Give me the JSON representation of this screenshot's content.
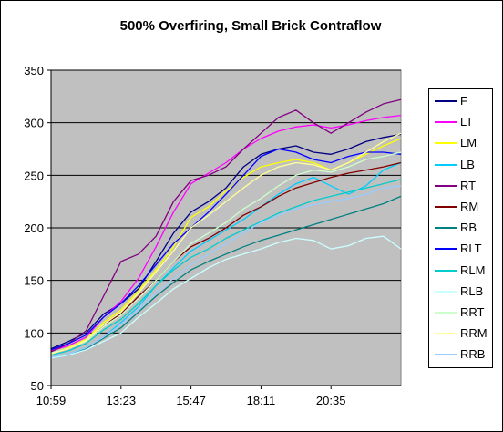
{
  "chart_data": {
    "type": "line",
    "title": "500% Overfiring, Small Brick Contraflow",
    "xlabel": "",
    "ylabel": "",
    "ylim": [
      50,
      350
    ],
    "y_ticks": [
      50,
      100,
      150,
      200,
      250,
      300,
      350
    ],
    "x_tick_labels": [
      "10:59",
      "13:23",
      "15:47",
      "18:11",
      "20:35"
    ],
    "grid": "horizontal",
    "legend_position": "right",
    "plot_background": "#c0c0c0",
    "x": [
      0,
      5,
      10,
      15,
      20,
      25,
      30,
      35,
      40,
      45,
      50,
      55,
      60,
      65,
      70,
      75,
      80,
      85,
      90,
      95,
      100
    ],
    "series": [
      {
        "name": "F",
        "color": "#000080",
        "values": [
          85,
          92,
          100,
          118,
          128,
          142,
          168,
          195,
          215,
          225,
          238,
          258,
          270,
          275,
          278,
          272,
          270,
          275,
          282,
          286,
          289
        ]
      },
      {
        "name": "LT",
        "color": "#ff00ff",
        "values": [
          83,
          88,
          96,
          115,
          130,
          152,
          182,
          215,
          242,
          252,
          262,
          275,
          285,
          292,
          296,
          298,
          295,
          298,
          302,
          305,
          307
        ]
      },
      {
        "name": "LM",
        "color": "#ffff00",
        "values": [
          80,
          86,
          94,
          110,
          122,
          140,
          160,
          182,
          210,
          220,
          235,
          248,
          258,
          262,
          265,
          262,
          255,
          262,
          270,
          278,
          285
        ]
      },
      {
        "name": "LB",
        "color": "#00ccff",
        "values": [
          77,
          80,
          86,
          96,
          110,
          125,
          145,
          162,
          178,
          188,
          198,
          208,
          220,
          232,
          242,
          248,
          240,
          232,
          240,
          255,
          262
        ]
      },
      {
        "name": "RT",
        "color": "#800080",
        "values": [
          82,
          90,
          102,
          135,
          168,
          175,
          192,
          225,
          245,
          250,
          258,
          275,
          290,
          305,
          312,
          300,
          290,
          300,
          310,
          318,
          322
        ]
      },
      {
        "name": "RM",
        "color": "#800000",
        "values": [
          80,
          85,
          92,
          108,
          118,
          135,
          150,
          168,
          182,
          190,
          200,
          212,
          220,
          230,
          238,
          243,
          248,
          252,
          255,
          258,
          262
        ]
      },
      {
        "name": "RB",
        "color": "#008080",
        "values": [
          76,
          79,
          85,
          95,
          105,
          120,
          135,
          148,
          160,
          168,
          175,
          182,
          188,
          193,
          198,
          203,
          208,
          213,
          218,
          223,
          230
        ]
      },
      {
        "name": "RLT",
        "color": "#0000ff",
        "values": [
          84,
          90,
          98,
          115,
          128,
          145,
          165,
          185,
          200,
          215,
          232,
          250,
          268,
          275,
          272,
          265,
          262,
          268,
          272,
          272,
          270
        ]
      },
      {
        "name": "RLM",
        "color": "#00cccc",
        "values": [
          79,
          83,
          90,
          103,
          113,
          128,
          145,
          160,
          172,
          180,
          190,
          198,
          206,
          214,
          220,
          226,
          230,
          234,
          238,
          242,
          246
        ]
      },
      {
        "name": "RLB",
        "color": "#ccffff",
        "values": [
          76,
          79,
          84,
          92,
          100,
          115,
          128,
          142,
          152,
          162,
          170,
          175,
          180,
          186,
          190,
          188,
          180,
          183,
          190,
          192,
          180
        ]
      },
      {
        "name": "RRT",
        "color": "#ccffcc",
        "values": [
          81,
          85,
          92,
          106,
          117,
          133,
          150,
          168,
          185,
          195,
          205,
          218,
          228,
          240,
          250,
          255,
          253,
          258,
          265,
          268,
          272
        ]
      },
      {
        "name": "RRM",
        "color": "#ffff99",
        "values": [
          80,
          85,
          93,
          108,
          120,
          138,
          158,
          178,
          200,
          212,
          225,
          238,
          250,
          258,
          262,
          260,
          255,
          262,
          272,
          282,
          290
        ]
      },
      {
        "name": "RRB",
        "color": "#99ccff",
        "values": [
          77,
          80,
          86,
          96,
          108,
          122,
          138,
          152,
          165,
          175,
          185,
          195,
          205,
          212,
          218,
          222,
          225,
          228,
          232,
          238,
          240
        ]
      }
    ]
  }
}
